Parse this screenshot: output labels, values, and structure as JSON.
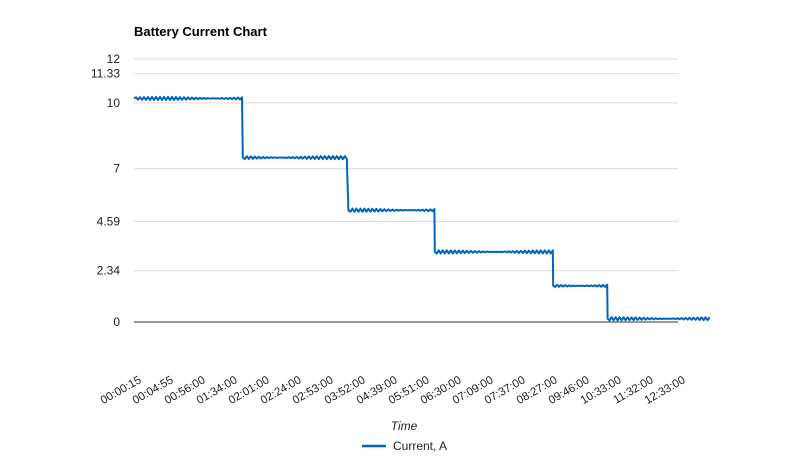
{
  "chart_data": {
    "type": "line",
    "title": "Battery Current Chart",
    "xlabel": "Time",
    "ylabel": "",
    "ylim": [
      0,
      12
    ],
    "y_ticks": [
      0,
      2.34,
      4.59,
      7,
      10,
      11.33,
      12
    ],
    "x_tick_labels": [
      "00:00:15",
      "00:04:55",
      "00:56:00",
      "01:34:00",
      "02:01:00",
      "02:24:00",
      "02:53:00",
      "03:52:00",
      "04:39:00",
      "05:51:00",
      "06:30:00",
      "07:09:00",
      "07:37:00",
      "08:27:00",
      "09:46:00",
      "10:33:00",
      "11:32:00",
      "12:33:00"
    ],
    "grid": true,
    "legend_position": "bottom",
    "colors": {
      "line": "#0066bb",
      "grid": "#d9d9d9",
      "baseline": "#333333"
    },
    "series": [
      {
        "name": "Current, A",
        "steps": [
          {
            "from_index": 0,
            "to_index": 3.4,
            "level": 10.2
          },
          {
            "from_index": 3.4,
            "to_index": 6.7,
            "level": 7.5
          },
          {
            "from_index": 6.7,
            "to_index": 9.4,
            "level": 5.1
          },
          {
            "from_index": 9.4,
            "to_index": 13.1,
            "level": 3.2
          },
          {
            "from_index": 13.1,
            "to_index": 14.8,
            "level": 1.65
          },
          {
            "from_index": 14.8,
            "to_index": 18.0,
            "level": 0.15
          }
        ]
      }
    ]
  }
}
